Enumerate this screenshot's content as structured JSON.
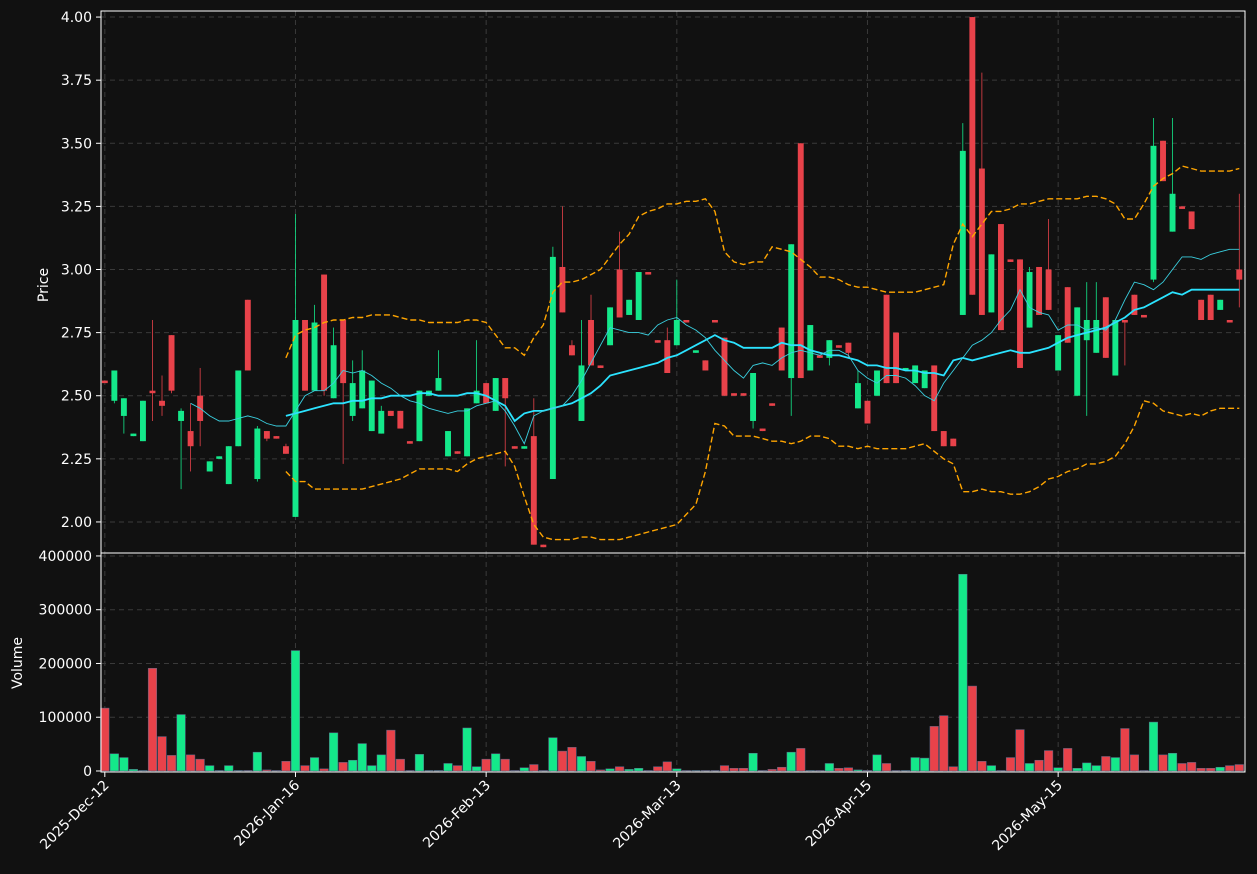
{
  "chart_data": {
    "type": "candlestick",
    "ylabel": "Price",
    "categories": [
      "2025-Dec-12",
      null,
      null,
      null,
      null,
      null,
      null,
      null,
      null,
      null,
      null,
      null,
      null,
      null,
      null,
      null,
      null,
      null,
      null,
      null,
      "2026-Jan-16",
      null,
      null,
      null,
      null,
      null,
      null,
      null,
      null,
      null,
      null,
      null,
      null,
      null,
      null,
      null,
      null,
      null,
      null,
      null,
      "2026-Feb-13",
      null,
      null,
      null,
      null,
      null,
      null,
      null,
      null,
      null,
      null,
      null,
      null,
      null,
      null,
      null,
      null,
      null,
      null,
      null,
      "2026-Mar-13",
      null,
      null,
      null,
      null,
      null,
      null,
      null,
      null,
      null,
      null,
      null,
      null,
      null,
      null,
      null,
      null,
      null,
      null,
      null,
      "2026-Apr-15",
      null,
      null,
      null,
      null,
      null,
      null,
      null,
      null,
      null,
      null,
      null,
      null,
      null,
      null,
      null,
      null,
      null,
      null,
      null,
      "2026-May-15",
      null,
      null,
      null,
      null,
      null,
      null,
      null,
      null,
      null,
      null,
      null,
      null,
      null,
      null,
      null,
      null,
      null,
      null,
      null
    ],
    "open": [
      2.56,
      2.48,
      2.42,
      2.34,
      2.32,
      2.52,
      2.48,
      2.74,
      2.4,
      2.36,
      2.5,
      2.2,
      2.25,
      2.15,
      2.3,
      2.88,
      2.17,
      2.36,
      2.34,
      2.3,
      2.02,
      2.8,
      2.52,
      2.98,
      2.49,
      2.8,
      2.42,
      2.45,
      2.36,
      2.35,
      2.44,
      2.44,
      2.32,
      2.32,
      2.5,
      2.52,
      2.26,
      2.28,
      2.26,
      2.47,
      2.55,
      2.44,
      2.57,
      2.3,
      2.29,
      2.34,
      1.91,
      2.17,
      3.01,
      2.7,
      2.4,
      2.8,
      2.62,
      2.7,
      3.0,
      2.82,
      2.8,
      2.99,
      2.72,
      2.72,
      2.7,
      2.8,
      2.67,
      2.64,
      2.8,
      2.73,
      2.51,
      2.51,
      2.4,
      2.37,
      2.47,
      2.77,
      2.57,
      3.5,
      2.6,
      2.66,
      2.65,
      2.7,
      2.71,
      2.45,
      2.48,
      2.5,
      2.9,
      2.75,
      2.6,
      2.55,
      2.53,
      2.62,
      2.36,
      2.33,
      2.82,
      4.0,
      3.4,
      2.83,
      3.18,
      3.04,
      3.04,
      2.77,
      3.01,
      3.0,
      2.6,
      2.93,
      2.5,
      2.72,
      2.67,
      2.89,
      2.58,
      2.8,
      2.9,
      2.82,
      2.96,
      3.51,
      3.15,
      3.25,
      3.23,
      2.88,
      2.9,
      2.84,
      2.8,
      3.0
    ],
    "high": [
      2.56,
      2.6,
      2.49,
      2.35,
      2.48,
      2.8,
      2.58,
      2.74,
      2.45,
      2.47,
      2.61,
      2.24,
      2.26,
      2.3,
      2.6,
      2.88,
      2.38,
      2.36,
      2.34,
      2.31,
      3.22,
      2.8,
      2.86,
      2.98,
      2.77,
      2.8,
      2.64,
      2.68,
      2.56,
      2.46,
      2.44,
      2.44,
      2.32,
      2.52,
      2.52,
      2.68,
      2.36,
      2.28,
      2.45,
      2.72,
      2.55,
      2.57,
      2.57,
      2.3,
      2.3,
      2.49,
      1.91,
      3.09,
      3.25,
      2.72,
      2.8,
      2.9,
      2.62,
      2.85,
      3.15,
      2.88,
      2.99,
      2.99,
      2.72,
      2.77,
      2.96,
      2.8,
      2.68,
      2.64,
      2.8,
      2.73,
      2.51,
      2.51,
      2.59,
      2.37,
      2.47,
      2.77,
      3.1,
      3.5,
      2.78,
      2.66,
      2.72,
      2.7,
      2.71,
      2.6,
      2.48,
      2.6,
      2.9,
      2.75,
      2.61,
      2.62,
      2.6,
      2.62,
      2.36,
      2.33,
      3.58,
      4.0,
      3.78,
      3.06,
      3.18,
      3.04,
      3.04,
      3.01,
      3.01,
      3.2,
      2.74,
      2.93,
      2.85,
      2.95,
      2.95,
      2.89,
      2.8,
      2.8,
      2.9,
      2.82,
      3.6,
      3.51,
      3.6,
      3.25,
      3.23,
      2.88,
      2.9,
      2.88,
      2.8,
      3.3
    ],
    "low": [
      2.55,
      2.47,
      2.35,
      2.34,
      2.32,
      2.4,
      2.42,
      2.51,
      2.13,
      2.2,
      2.3,
      2.2,
      2.25,
      2.15,
      2.3,
      2.6,
      2.16,
      2.32,
      2.33,
      2.27,
      2.02,
      2.52,
      2.52,
      2.5,
      2.49,
      2.23,
      2.4,
      2.45,
      2.36,
      2.35,
      2.42,
      2.37,
      2.31,
      2.32,
      2.5,
      2.52,
      2.26,
      2.27,
      2.26,
      2.47,
      2.47,
      2.44,
      2.22,
      2.29,
      2.29,
      1.91,
      1.9,
      2.17,
      2.83,
      2.66,
      2.4,
      2.62,
      2.61,
      2.7,
      2.81,
      2.82,
      2.8,
      2.98,
      2.71,
      2.59,
      2.7,
      2.79,
      2.67,
      2.6,
      2.79,
      2.5,
      2.5,
      2.5,
      2.37,
      2.36,
      2.46,
      2.6,
      2.42,
      2.57,
      2.6,
      2.65,
      2.62,
      2.69,
      2.65,
      2.45,
      2.39,
      2.5,
      2.55,
      2.55,
      2.6,
      2.55,
      2.53,
      2.36,
      2.3,
      2.3,
      2.82,
      2.9,
      2.82,
      2.83,
      2.76,
      3.03,
      2.61,
      2.77,
      2.82,
      2.84,
      2.6,
      2.71,
      2.5,
      2.42,
      2.67,
      2.65,
      2.58,
      2.62,
      2.82,
      2.81,
      2.95,
      3.35,
      3.15,
      3.24,
      3.16,
      2.8,
      2.8,
      2.84,
      2.79,
      2.85
    ],
    "close": [
      2.55,
      2.6,
      2.49,
      2.35,
      2.48,
      2.51,
      2.46,
      2.52,
      2.44,
      2.3,
      2.4,
      2.24,
      2.26,
      2.3,
      2.6,
      2.6,
      2.37,
      2.33,
      2.33,
      2.27,
      2.8,
      2.52,
      2.79,
      2.52,
      2.7,
      2.55,
      2.55,
      2.6,
      2.56,
      2.44,
      2.42,
      2.37,
      2.31,
      2.52,
      2.52,
      2.57,
      2.36,
      2.27,
      2.45,
      2.52,
      2.47,
      2.57,
      2.49,
      2.29,
      2.3,
      1.91,
      1.9,
      3.05,
      2.83,
      2.66,
      2.62,
      2.62,
      2.61,
      2.85,
      2.81,
      2.88,
      2.99,
      2.98,
      2.71,
      2.59,
      2.8,
      2.79,
      2.68,
      2.6,
      2.79,
      2.5,
      2.5,
      2.5,
      2.59,
      2.36,
      2.46,
      2.6,
      3.1,
      2.57,
      2.78,
      2.65,
      2.72,
      2.69,
      2.67,
      2.55,
      2.39,
      2.6,
      2.55,
      2.55,
      2.61,
      2.62,
      2.6,
      2.36,
      2.3,
      2.3,
      3.47,
      2.9,
      2.82,
      3.06,
      2.76,
      3.03,
      2.61,
      2.99,
      2.82,
      2.84,
      2.74,
      2.71,
      2.85,
      2.8,
      2.8,
      2.65,
      2.8,
      2.79,
      2.82,
      2.81,
      3.49,
      3.35,
      3.3,
      3.24,
      3.16,
      2.8,
      2.8,
      2.88,
      2.79,
      2.96
    ],
    "up_color": "#14e88a",
    "down_color": "#e8424a",
    "lines": [
      {
        "color": "#2be3ff",
        "width": 1.8,
        "style": "solid",
        "values": [
          null,
          null,
          null,
          null,
          null,
          null,
          null,
          null,
          null,
          null,
          null,
          null,
          null,
          null,
          null,
          null,
          null,
          null,
          null,
          2.42,
          2.43,
          2.44,
          2.45,
          2.46,
          2.47,
          2.47,
          2.48,
          2.48,
          2.49,
          2.49,
          2.5,
          2.5,
          2.5,
          2.51,
          2.51,
          2.5,
          2.5,
          2.5,
          2.51,
          2.51,
          2.5,
          2.48,
          2.46,
          2.4,
          2.43,
          2.44,
          2.44,
          2.45,
          2.46,
          2.47,
          2.49,
          2.51,
          2.54,
          2.58,
          2.59,
          2.6,
          2.61,
          2.62,
          2.63,
          2.65,
          2.66,
          2.68,
          2.7,
          2.72,
          2.74,
          2.72,
          2.71,
          2.69,
          2.69,
          2.69,
          2.69,
          2.71,
          2.7,
          2.7,
          2.68,
          2.67,
          2.66,
          2.66,
          2.65,
          2.64,
          2.62,
          2.62,
          2.61,
          2.61,
          2.6,
          2.6,
          2.59,
          2.59,
          2.58,
          2.64,
          2.65,
          2.64,
          2.65,
          2.66,
          2.67,
          2.68,
          2.67,
          2.67,
          2.68,
          2.69,
          2.71,
          2.73,
          2.74,
          2.75,
          2.76,
          2.77,
          2.79,
          2.81,
          2.84,
          2.85,
          2.87,
          2.89,
          2.91,
          2.9,
          2.92,
          2.92,
          2.92,
          2.92,
          2.92,
          2.92
        ]
      },
      {
        "color": "#3ad0e0",
        "width": 0.9,
        "style": "solid",
        "values": [
          null,
          null,
          null,
          null,
          null,
          null,
          null,
          null,
          null,
          2.47,
          2.45,
          2.42,
          2.4,
          2.4,
          2.41,
          2.42,
          2.41,
          2.39,
          2.38,
          2.38,
          2.44,
          2.5,
          2.52,
          2.52,
          2.55,
          2.6,
          2.59,
          2.6,
          2.58,
          2.55,
          2.53,
          2.5,
          2.48,
          2.47,
          2.45,
          2.44,
          2.43,
          2.44,
          2.44,
          2.46,
          2.47,
          2.48,
          2.44,
          2.38,
          2.31,
          2.42,
          2.44,
          2.45,
          2.46,
          2.5,
          2.56,
          2.63,
          2.7,
          2.77,
          2.76,
          2.75,
          2.75,
          2.74,
          2.78,
          2.8,
          2.81,
          2.78,
          2.76,
          2.73,
          2.68,
          2.64,
          2.6,
          2.57,
          2.62,
          2.63,
          2.62,
          2.65,
          2.67,
          2.68,
          2.67,
          2.66,
          2.68,
          2.68,
          2.66,
          2.6,
          2.57,
          2.55,
          2.58,
          2.58,
          2.57,
          2.54,
          2.5,
          2.48,
          2.55,
          2.6,
          2.65,
          2.7,
          2.72,
          2.75,
          2.8,
          2.84,
          2.92,
          2.85,
          2.83,
          2.82,
          2.76,
          2.78,
          2.78,
          2.76,
          2.77,
          2.76,
          2.8,
          2.88,
          2.95,
          2.94,
          2.92,
          2.95,
          3.0,
          3.05,
          3.05,
          3.04,
          3.06,
          3.07,
          3.08,
          3.08
        ]
      },
      {
        "color": "#ffa500",
        "width": 1.4,
        "style": "dashed",
        "values": [
          null,
          null,
          null,
          null,
          null,
          null,
          null,
          null,
          null,
          null,
          null,
          null,
          null,
          null,
          null,
          null,
          null,
          null,
          null,
          2.65,
          2.74,
          2.76,
          2.77,
          2.79,
          2.8,
          2.8,
          2.81,
          2.81,
          2.82,
          2.82,
          2.82,
          2.81,
          2.8,
          2.8,
          2.79,
          2.79,
          2.79,
          2.79,
          2.8,
          2.8,
          2.79,
          2.74,
          2.69,
          2.69,
          2.66,
          2.73,
          2.78,
          2.91,
          2.95,
          2.95,
          2.96,
          2.98,
          3.0,
          3.05,
          3.1,
          3.14,
          3.21,
          3.23,
          3.24,
          3.26,
          3.26,
          3.27,
          3.27,
          3.28,
          3.23,
          3.07,
          3.03,
          3.02,
          3.03,
          3.03,
          3.09,
          3.08,
          3.07,
          3.04,
          3.01,
          2.97,
          2.97,
          2.96,
          2.94,
          2.93,
          2.93,
          2.92,
          2.91,
          2.91,
          2.91,
          2.91,
          2.92,
          2.93,
          2.94,
          3.1,
          3.18,
          3.13,
          3.18,
          3.23,
          3.23,
          3.24,
          3.26,
          3.26,
          3.27,
          3.28,
          3.28,
          3.28,
          3.28,
          3.29,
          3.29,
          3.28,
          3.26,
          3.2,
          3.2,
          3.26,
          3.33,
          3.36,
          3.38,
          3.41,
          3.4,
          3.39,
          3.39,
          3.39,
          3.39,
          3.4
        ]
      },
      {
        "color": "#ffa500",
        "width": 1.4,
        "style": "dashed",
        "values": [
          null,
          null,
          null,
          null,
          null,
          null,
          null,
          null,
          null,
          null,
          null,
          null,
          null,
          null,
          null,
          null,
          null,
          null,
          null,
          2.2,
          2.16,
          2.16,
          2.13,
          2.13,
          2.13,
          2.13,
          2.13,
          2.13,
          2.14,
          2.15,
          2.16,
          2.17,
          2.19,
          2.21,
          2.21,
          2.21,
          2.21,
          2.2,
          2.23,
          2.25,
          2.26,
          2.27,
          2.28,
          2.22,
          2.1,
          1.99,
          1.94,
          1.93,
          1.93,
          1.93,
          1.94,
          1.94,
          1.93,
          1.93,
          1.93,
          1.94,
          1.95,
          1.96,
          1.97,
          1.98,
          1.99,
          2.03,
          2.07,
          2.2,
          2.39,
          2.38,
          2.34,
          2.34,
          2.34,
          2.33,
          2.32,
          2.32,
          2.31,
          2.32,
          2.34,
          2.34,
          2.33,
          2.3,
          2.3,
          2.29,
          2.3,
          2.29,
          2.29,
          2.29,
          2.29,
          2.3,
          2.31,
          2.28,
          2.25,
          2.23,
          2.12,
          2.12,
          2.13,
          2.12,
          2.12,
          2.11,
          2.11,
          2.12,
          2.14,
          2.17,
          2.18,
          2.2,
          2.21,
          2.23,
          2.23,
          2.24,
          2.26,
          2.31,
          2.38,
          2.48,
          2.47,
          2.44,
          2.43,
          2.42,
          2.43,
          2.42,
          2.44,
          2.45,
          2.45,
          2.45
        ]
      }
    ],
    "ylim": [
      1.877,
      4.024
    ],
    "yticks": [
      {
        "value": 2,
        "label": "2.00"
      },
      2.25,
      {
        "value": 2.5,
        "label": "2.50"
      },
      2.75,
      {
        "value": 3,
        "label": "3.00"
      },
      3.25,
      {
        "value": 3.5,
        "label": "3.50"
      },
      3.75,
      {
        "value": 4,
        "label": "4.00"
      }
    ],
    "grid": true,
    "volume": {
      "ylabel": "Volume",
      "values": [
        117000,
        32000,
        25000,
        3000,
        1000,
        191000,
        64000,
        29000,
        105000,
        30000,
        22000,
        10000,
        1000,
        10000,
        1000,
        1000,
        35000,
        2000,
        1000,
        18000,
        224000,
        10000,
        25000,
        4000,
        71000,
        16000,
        20000,
        51000,
        10000,
        30000,
        76000,
        22000,
        1000,
        31000,
        1000,
        1000,
        14000,
        10000,
        80000,
        8000,
        22000,
        32000,
        22000,
        1000,
        6000,
        12000,
        1000,
        62000,
        37000,
        44000,
        27000,
        18000,
        2000,
        4000,
        8000,
        3000,
        5000,
        1000,
        8000,
        17000,
        4000,
        1000,
        1000,
        1000,
        1000,
        10000,
        5000,
        5000,
        33000,
        1000,
        3000,
        7000,
        35000,
        42000,
        1000,
        1000,
        14000,
        5000,
        6000,
        2000,
        1000,
        30000,
        14000,
        1000,
        1000,
        25000,
        24000,
        83000,
        103000,
        8000,
        366000,
        158000,
        18000,
        10000,
        1000,
        25000,
        77000,
        14000,
        20000,
        38000,
        6000,
        42000,
        5000,
        15000,
        10000,
        27000,
        25000,
        79000,
        30000,
        1000,
        91000,
        30000,
        33000,
        14000,
        16000,
        5000,
        5000,
        7000,
        10000,
        12000
      ],
      "ylim": [
        -1900,
        405500
      ],
      "yticks": [
        0,
        100000,
        200000,
        300000,
        400000
      ]
    }
  }
}
